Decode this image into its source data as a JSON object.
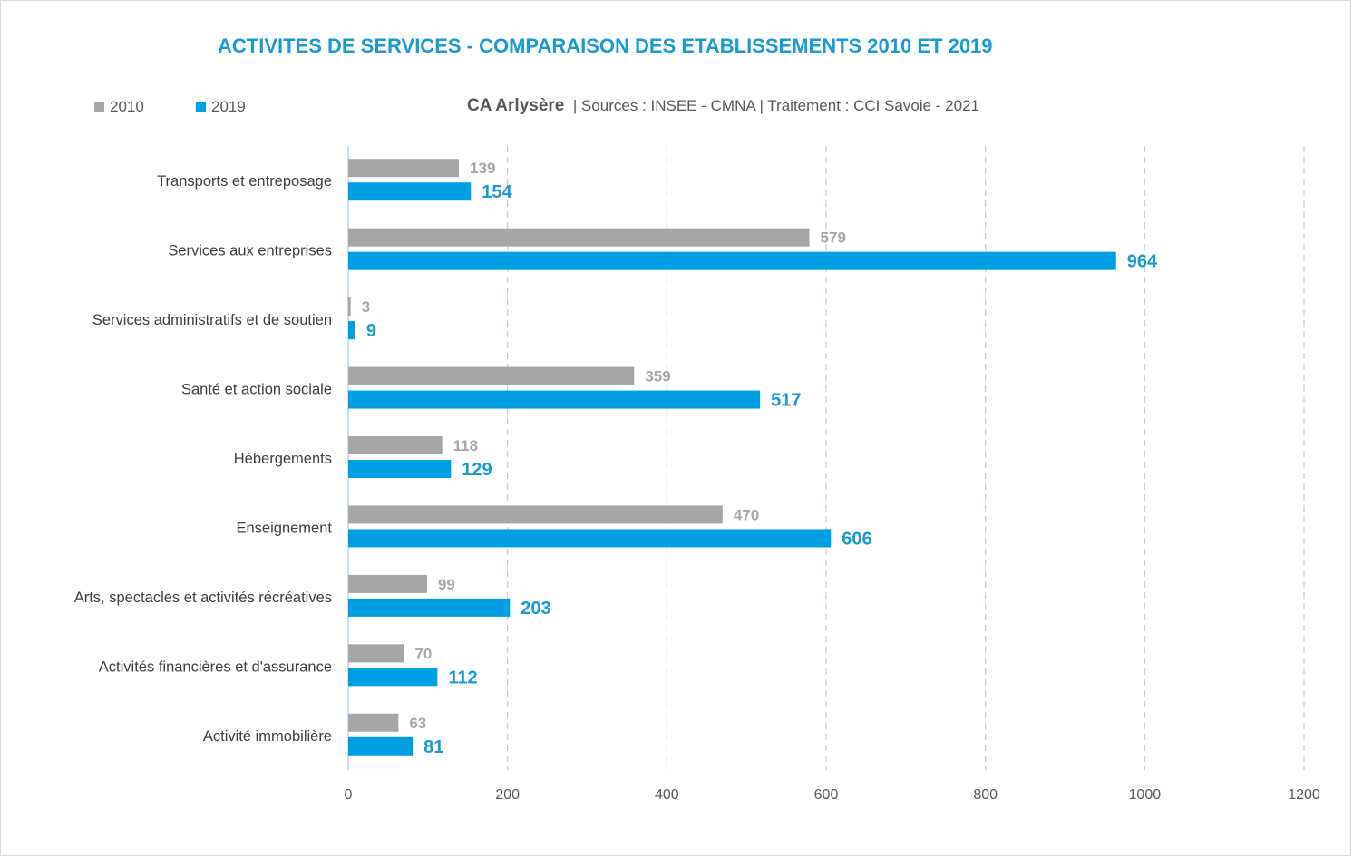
{
  "chart_data": {
    "type": "bar",
    "orientation": "horizontal",
    "title": "ACTIVITES DE SERVICES - COMPARAISON DES ETABLISSEMENTS 2010 ET 2019",
    "subtitle": {
      "area": "CA Arlysère",
      "sources": "|  Sources : INSEE - CMNA  |  Traitement : CCI Savoie - 2021"
    },
    "categories": [
      "Transports et entreposage",
      "Services aux entreprises",
      "Services administratifs et de soutien",
      "Santé et action sociale",
      "Hébergements",
      "Enseignement",
      "Arts, spectacles et activités récréatives",
      "Activités financières et d'assurance",
      "Activité immobilière"
    ],
    "series": [
      {
        "name": "2010",
        "color": "#a6a6a6",
        "values": [
          139,
          579,
          3,
          359,
          118,
          470,
          99,
          70,
          63
        ]
      },
      {
        "name": "2019",
        "color": "#009fe3",
        "values": [
          154,
          964,
          9,
          517,
          129,
          606,
          203,
          112,
          81
        ]
      }
    ],
    "xlim": [
      0,
      1200
    ],
    "xticks": [
      "0",
      "200",
      "400",
      "600",
      "800",
      "1000",
      "1200"
    ],
    "xtick_values": [
      0,
      200,
      400,
      600,
      800,
      1000,
      1200
    ],
    "grid": "vertical-dashed",
    "legend_position": "top-left",
    "xlabel": "",
    "ylabel": ""
  }
}
